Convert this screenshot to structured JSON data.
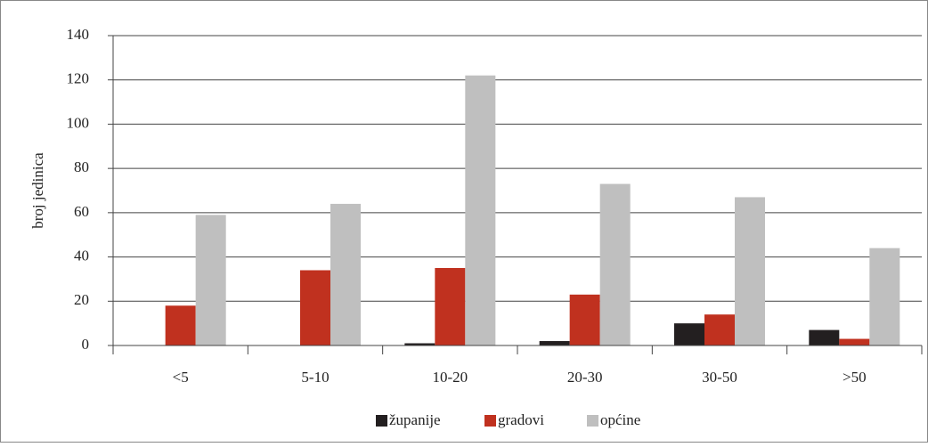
{
  "chart_data": {
    "type": "bar",
    "y_label": "broj jedinica",
    "categories": [
      "<5",
      "5-10",
      "10-20",
      "20-30",
      "30-50",
      ">50"
    ],
    "series": [
      {
        "name": "županije",
        "color": "#231f20",
        "values": [
          0,
          0,
          1,
          2,
          10,
          7
        ]
      },
      {
        "name": "gradovi",
        "color": "#c0311f",
        "values": [
          18,
          34,
          35,
          23,
          14,
          3
        ]
      },
      {
        "name": "općine",
        "color": "#bfbfbf",
        "values": [
          59,
          64,
          122,
          73,
          67,
          44
        ]
      }
    ],
    "ylim": [
      0,
      140
    ],
    "yticks": [
      0,
      20,
      40,
      60,
      80,
      100,
      120,
      140
    ],
    "grid": true,
    "legend": "bottom"
  }
}
